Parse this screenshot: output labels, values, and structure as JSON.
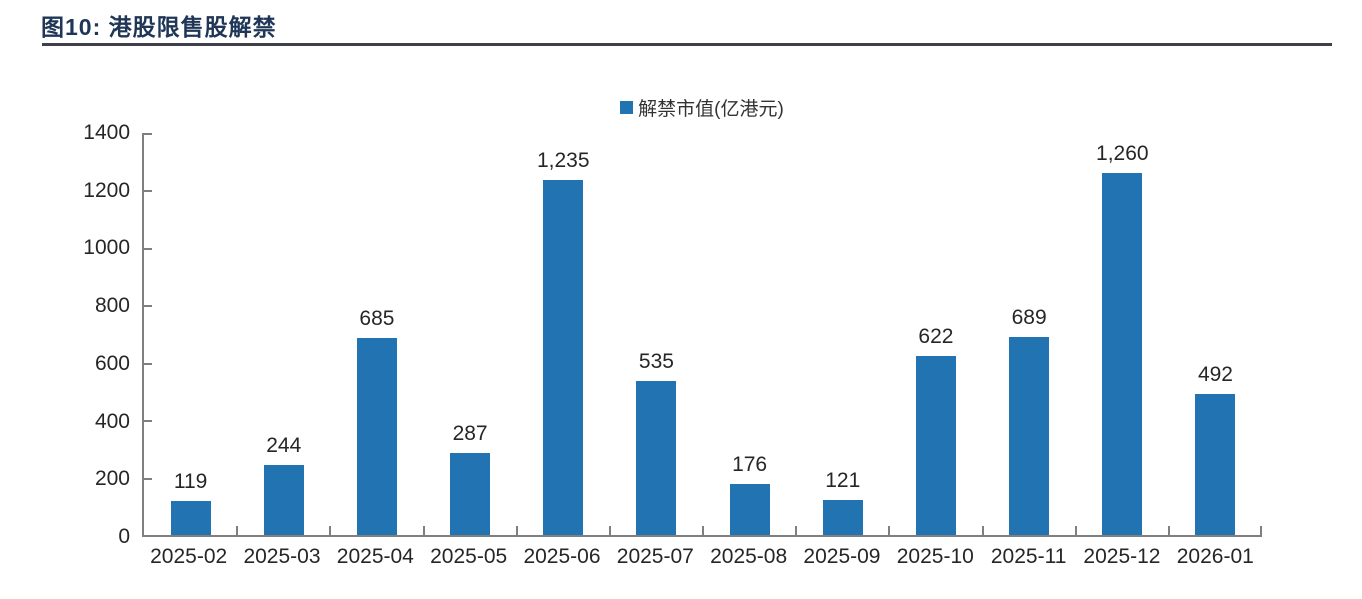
{
  "figure": {
    "title": "图10:  港股限售股解禁"
  },
  "legend": {
    "label": "解禁市值(亿港元)"
  },
  "chart_data": {
    "type": "bar",
    "title": "图10: 港股限售股解禁",
    "legend": [
      "解禁市值(亿港元)"
    ],
    "legend_position": "top-center",
    "categories": [
      "2025-02",
      "2025-03",
      "2025-04",
      "2025-05",
      "2025-06",
      "2025-07",
      "2025-08",
      "2025-09",
      "2025-10",
      "2025-11",
      "2025-12",
      "2026-01"
    ],
    "values": [
      119,
      244,
      685,
      287,
      1235,
      535,
      176,
      121,
      622,
      689,
      1260,
      492
    ],
    "value_labels": [
      "119",
      "244",
      "685",
      "287",
      "1,235",
      "535",
      "176",
      "121",
      "622",
      "689",
      "1,260",
      "492"
    ],
    "xlabel": "",
    "ylabel": "",
    "ylim": [
      0,
      1400
    ],
    "ytick_step": 200,
    "grid": false
  },
  "colors": {
    "bar": "#2173B2",
    "title": "#1F3656",
    "divider": "#3F4049",
    "axis_line": "#7F7F7F",
    "label_text": "#262626"
  }
}
